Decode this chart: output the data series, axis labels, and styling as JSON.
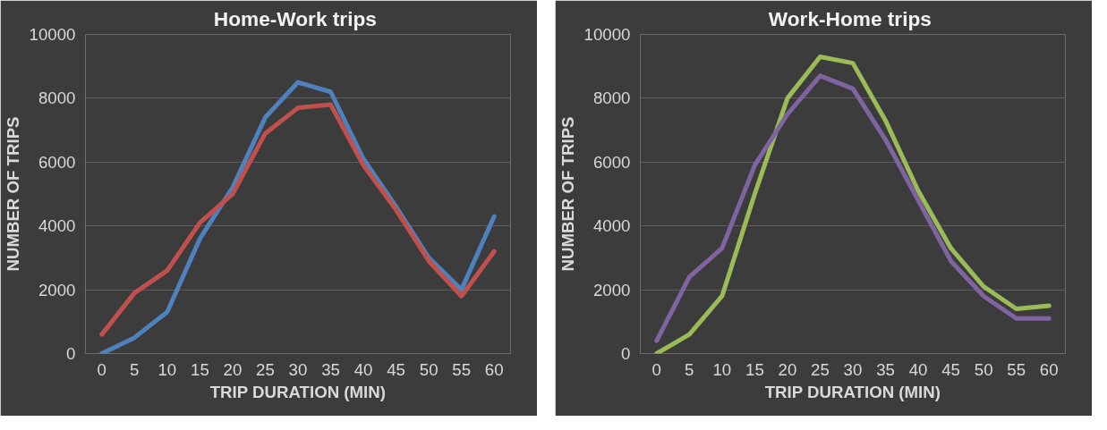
{
  "chart_data": [
    {
      "type": "line",
      "title": "Home-Work  trips",
      "xlabel": "TRIP DURATION (MIN)",
      "ylabel": "NUMBER OF TRIPS",
      "categories": [
        "0",
        "5",
        "10",
        "15",
        "20",
        "25",
        "30",
        "35",
        "40",
        "45",
        "50",
        "55",
        "60"
      ],
      "series": [
        {
          "color": "#4f81bd",
          "values": [
            0,
            500,
            1300,
            3600,
            5200,
            7400,
            8500,
            8200,
            6100,
            4600,
            3000,
            2000,
            4300
          ]
        },
        {
          "color": "#c0504d",
          "values": [
            600,
            1900,
            2600,
            4100,
            5000,
            6900,
            7700,
            7800,
            5900,
            4500,
            2900,
            1800,
            3200
          ]
        }
      ],
      "ylim": [
        0,
        10000
      ],
      "yticks": [
        0,
        2000,
        4000,
        6000,
        8000,
        10000
      ],
      "grid": "y"
    },
    {
      "type": "line",
      "title": "Work-Home  trips",
      "xlabel": "TRIP DURATION (MIN)",
      "ylabel": "NUMBER OF TRIPS",
      "categories": [
        "0",
        "5",
        "10",
        "15",
        "20",
        "25",
        "30",
        "35",
        "40",
        "45",
        "50",
        "55",
        "60"
      ],
      "series": [
        {
          "color": "#9bbb59",
          "values": [
            0,
            600,
            1800,
            5000,
            8000,
            9300,
            9100,
            7300,
            5100,
            3300,
            2100,
            1400,
            1500
          ]
        },
        {
          "color": "#8064a2",
          "values": [
            400,
            2400,
            3300,
            5900,
            7500,
            8700,
            8300,
            6700,
            4800,
            2900,
            1800,
            1100,
            1100
          ]
        }
      ],
      "ylim": [
        0,
        10000
      ],
      "yticks": [
        0,
        2000,
        4000,
        6000,
        8000,
        10000
      ],
      "grid": "y"
    }
  ]
}
